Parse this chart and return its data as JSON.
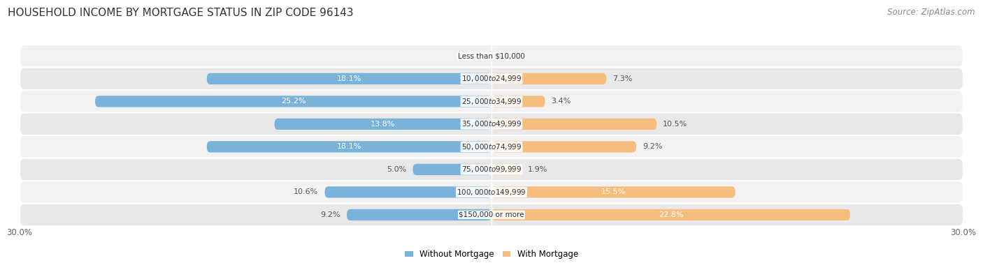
{
  "title": "HOUSEHOLD INCOME BY MORTGAGE STATUS IN ZIP CODE 96143",
  "source": "Source: ZipAtlas.com",
  "categories": [
    "Less than $10,000",
    "$10,000 to $24,999",
    "$25,000 to $34,999",
    "$35,000 to $49,999",
    "$50,000 to $74,999",
    "$75,000 to $99,999",
    "$100,000 to $149,999",
    "$150,000 or more"
  ],
  "without_mortgage": [
    0.0,
    18.1,
    25.2,
    13.8,
    18.1,
    5.0,
    10.6,
    9.2
  ],
  "with_mortgage": [
    0.0,
    7.3,
    3.4,
    10.5,
    9.2,
    1.9,
    15.5,
    22.8
  ],
  "color_without": "#7ab3d9",
  "color_with": "#f5be7e",
  "row_color_light": "#f2f2f2",
  "row_color_dark": "#e8e8e8",
  "xlim": 30.0,
  "legend_label_without": "Without Mortgage",
  "legend_label_with": "With Mortgage",
  "title_fontsize": 11,
  "source_fontsize": 8.5,
  "bar_label_fontsize": 8,
  "category_fontsize": 7.5,
  "bar_height": 0.5
}
